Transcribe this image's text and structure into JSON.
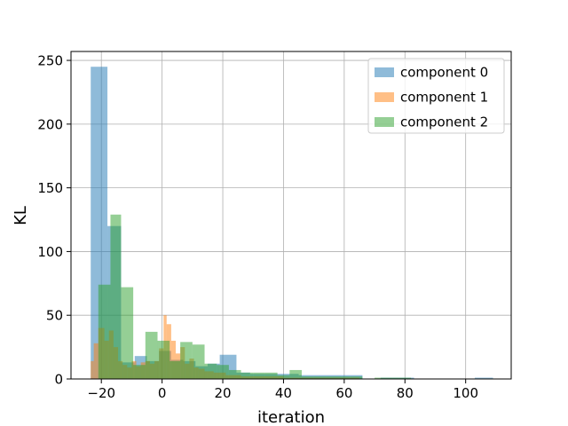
{
  "chart_data": {
    "type": "bar",
    "title": "",
    "xlabel": "iteration",
    "ylabel": "KL",
    "xlim": [
      -30,
      115
    ],
    "ylim": [
      0,
      257
    ],
    "xticks": [
      -20,
      0,
      20,
      40,
      60,
      80,
      100
    ],
    "yticks": [
      0,
      50,
      100,
      150,
      200,
      250
    ],
    "grid": true,
    "legend": "top-right",
    "series": [
      {
        "name": "component 0",
        "color": "#1f77b4",
        "opacity": 0.5,
        "bins": [
          [
            -23.5,
            -18,
            245
          ],
          [
            -18,
            -13.5,
            120
          ],
          [
            -13.5,
            -9,
            13
          ],
          [
            -9,
            -5,
            18
          ],
          [
            -5,
            -1,
            14
          ],
          [
            -1,
            3,
            22
          ],
          [
            3,
            7,
            15
          ],
          [
            7,
            11,
            14
          ],
          [
            11,
            15,
            10
          ],
          [
            15,
            19,
            12
          ],
          [
            19,
            24.5,
            19
          ],
          [
            24.5,
            29,
            5
          ],
          [
            29,
            34,
            4
          ],
          [
            34,
            39,
            4
          ],
          [
            39,
            45,
            4
          ],
          [
            45,
            52,
            3
          ],
          [
            52,
            59,
            3
          ],
          [
            59,
            66,
            3
          ],
          [
            72,
            78,
            1
          ],
          [
            78,
            83,
            1
          ],
          [
            103,
            109,
            1
          ]
        ]
      },
      {
        "name": "component 1",
        "color": "#ff7f0e",
        "opacity": 0.5,
        "bins": [
          [
            -23.5,
            -22.5,
            14
          ],
          [
            -22.5,
            -21,
            28
          ],
          [
            -21,
            -19,
            40
          ],
          [
            -19,
            -17.5,
            30
          ],
          [
            -17.5,
            -16,
            38
          ],
          [
            -16,
            -14.5,
            25
          ],
          [
            -14.5,
            -13,
            14
          ],
          [
            -13,
            -11.5,
            11
          ],
          [
            -11.5,
            -10,
            9
          ],
          [
            -10,
            -8.5,
            14
          ],
          [
            -8.5,
            -7,
            10
          ],
          [
            -7,
            -5.5,
            13
          ],
          [
            -5.5,
            -4,
            14
          ],
          [
            -4,
            -2.5,
            12
          ],
          [
            -2.5,
            -1,
            14
          ],
          [
            -1,
            0.5,
            24
          ],
          [
            0.5,
            1.5,
            50
          ],
          [
            1.5,
            3,
            43
          ],
          [
            3,
            4.5,
            30
          ],
          [
            4.5,
            6,
            20
          ],
          [
            6,
            7.5,
            25
          ],
          [
            7.5,
            9,
            12
          ],
          [
            9,
            10.5,
            16
          ],
          [
            10.5,
            12,
            9
          ],
          [
            12,
            14,
            8
          ],
          [
            14,
            17,
            6
          ],
          [
            17,
            21,
            5
          ],
          [
            21,
            26,
            3
          ],
          [
            26,
            33,
            2
          ],
          [
            33,
            40,
            2
          ],
          [
            40,
            52,
            1
          ],
          [
            52,
            65,
            1
          ]
        ]
      },
      {
        "name": "component 2",
        "color": "#2ca02c",
        "opacity": 0.5,
        "bins": [
          [
            -21,
            -17,
            74
          ],
          [
            -17,
            -13.5,
            129
          ],
          [
            -13.5,
            -9.5,
            72
          ],
          [
            -9.5,
            -5.5,
            11
          ],
          [
            -5.5,
            -1.5,
            37
          ],
          [
            -1.5,
            2.5,
            30
          ],
          [
            2.5,
            6,
            14
          ],
          [
            6,
            10,
            29
          ],
          [
            10,
            14,
            27
          ],
          [
            14,
            18,
            12
          ],
          [
            18,
            22,
            11
          ],
          [
            22,
            26,
            7
          ],
          [
            26,
            30,
            5
          ],
          [
            30,
            34,
            5
          ],
          [
            34,
            38,
            5
          ],
          [
            38,
            42,
            3
          ],
          [
            42,
            46,
            7
          ],
          [
            46,
            50,
            2
          ],
          [
            50,
            54,
            2
          ],
          [
            54,
            58,
            2
          ],
          [
            58,
            62,
            2
          ],
          [
            62,
            66,
            2
          ],
          [
            70,
            76,
            1
          ],
          [
            76,
            82,
            1
          ]
        ]
      }
    ]
  }
}
